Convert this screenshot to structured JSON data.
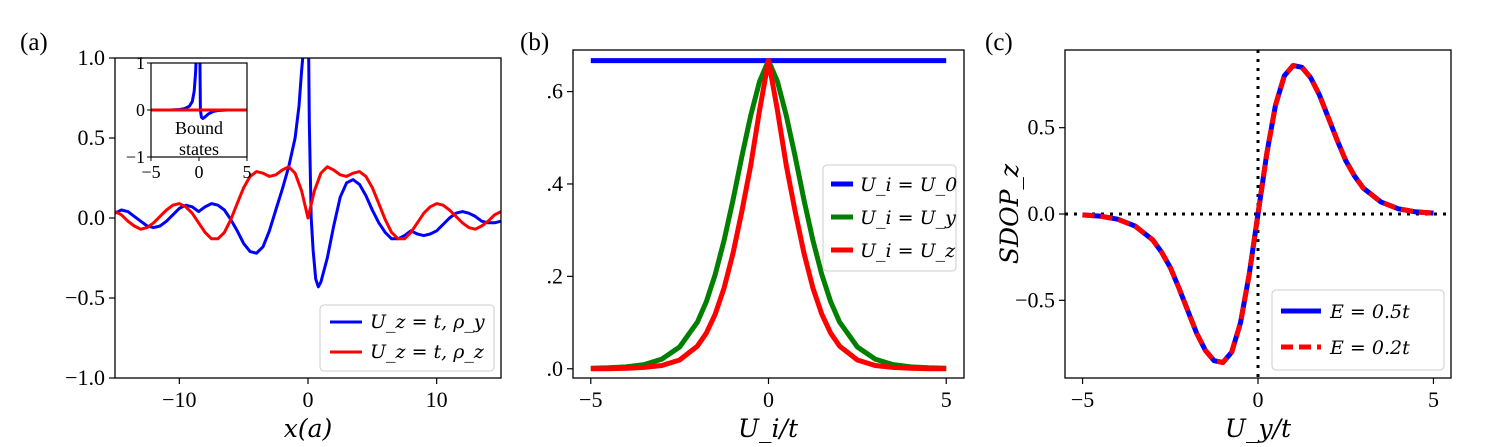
{
  "colors": {
    "blue": "#0000ff",
    "red": "#ff0000",
    "green": "#007f00",
    "black": "#000000"
  },
  "chart_data": [
    {
      "panel": "(a)",
      "type": "line",
      "xlabel": "x(a)",
      "ylabel": "",
      "xlim": [
        -15,
        15
      ],
      "ylim": [
        -1,
        1
      ],
      "xticks": [
        -10,
        0,
        10
      ],
      "xtick_labels": [
        "−10",
        "0",
        "10"
      ],
      "yticks": [
        -1,
        -0.5,
        0,
        0.5,
        1
      ],
      "ytick_labels": [
        "−1.0",
        "−0.5",
        "0.0",
        "0.5",
        "1.0"
      ],
      "legend_loc": "lower-right",
      "series": [
        {
          "name": "U_z = t, ρ_y",
          "color": "#0000ff",
          "x": [
            -15,
            -14.5,
            -14,
            -13.5,
            -13,
            -12.5,
            -12,
            -11.5,
            -11,
            -10.5,
            -10,
            -9.5,
            -9,
            -8.5,
            -8,
            -7.5,
            -7,
            -6.5,
            -6,
            -5.5,
            -5,
            -4.5,
            -4,
            -3.5,
            -3,
            -2.5,
            -2,
            -1.5,
            -1,
            -0.7,
            -0.5,
            -0.3,
            -0.15,
            0,
            0.1,
            0.25,
            0.4,
            0.6,
            0.8,
            1,
            1.5,
            2,
            2.5,
            3,
            3.5,
            4,
            4.5,
            5,
            5.5,
            6,
            6.5,
            7,
            7.5,
            8,
            8.5,
            9,
            9.5,
            10,
            10.5,
            11,
            11.5,
            12,
            12.5,
            13,
            13.5,
            14,
            14.5,
            15
          ],
          "y": [
            0.03,
            0.05,
            0.04,
            0.01,
            -0.02,
            -0.05,
            -0.06,
            -0.05,
            -0.02,
            0.02,
            0.06,
            0.08,
            0.07,
            0.04,
            0.07,
            0.09,
            0.08,
            0.05,
            -0.01,
            -0.08,
            -0.16,
            -0.21,
            -0.22,
            -0.18,
            -0.08,
            0.05,
            0.18,
            0.32,
            0.5,
            0.7,
            0.92,
            1.1,
            1.3,
            1.5,
            0.6,
            0.0,
            -0.2,
            -0.38,
            -0.43,
            -0.4,
            -0.25,
            -0.05,
            0.13,
            0.22,
            0.24,
            0.21,
            0.14,
            0.05,
            -0.03,
            -0.09,
            -0.13,
            -0.13,
            -0.11,
            -0.08,
            -0.1,
            -0.11,
            -0.1,
            -0.08,
            -0.04,
            0.0,
            0.03,
            0.04,
            0.03,
            0.01,
            -0.02,
            -0.03,
            -0.03,
            -0.02
          ]
        },
        {
          "name": "U_z = t, ρ_z",
          "color": "#ff0000",
          "x": [
            -15,
            -14.5,
            -14,
            -13.5,
            -13,
            -12.5,
            -12,
            -11.5,
            -11,
            -10.5,
            -10,
            -9.5,
            -9,
            -8.5,
            -8,
            -7.5,
            -7,
            -6.5,
            -6,
            -5.5,
            -5,
            -4.5,
            -4,
            -3.5,
            -3,
            -2.5,
            -2,
            -1.5,
            -1,
            -0.5,
            0,
            0.5,
            1,
            1.5,
            2,
            2.5,
            3,
            3.5,
            4,
            4.5,
            5,
            5.5,
            6,
            6.5,
            7,
            7.5,
            8,
            8.5,
            9,
            9.5,
            10,
            10.5,
            11,
            11.5,
            12,
            12.5,
            13,
            13.5,
            14,
            14.5,
            15
          ],
          "y": [
            0.04,
            0.02,
            -0.02,
            -0.05,
            -0.07,
            -0.06,
            -0.03,
            0.01,
            0.05,
            0.08,
            0.09,
            0.07,
            0.03,
            -0.03,
            -0.09,
            -0.13,
            -0.13,
            -0.09,
            -0.01,
            0.09,
            0.19,
            0.26,
            0.29,
            0.28,
            0.26,
            0.27,
            0.3,
            0.32,
            0.28,
            0.17,
            0.0,
            0.17,
            0.28,
            0.32,
            0.3,
            0.27,
            0.26,
            0.28,
            0.29,
            0.26,
            0.19,
            0.09,
            -0.01,
            -0.09,
            -0.13,
            -0.13,
            -0.09,
            -0.03,
            0.03,
            0.07,
            0.09,
            0.08,
            0.05,
            0.01,
            -0.03,
            -0.06,
            -0.07,
            -0.05,
            -0.02,
            0.02,
            0.04
          ]
        }
      ],
      "inset": {
        "xlim": [
          -5,
          5
        ],
        "ylim": [
          -1,
          1
        ],
        "xticks": [
          -5,
          0,
          5
        ],
        "xtick_labels": [
          "−5",
          "0",
          "5"
        ],
        "yticks": [
          -1,
          0,
          1
        ],
        "ytick_labels": [
          "−1",
          "0",
          "1"
        ],
        "note_line1": "Bound",
        "note_line2": "states",
        "series": [
          {
            "color": "#0000ff",
            "x": [
              -5,
              -3,
              -2,
              -1.5,
              -1,
              -0.7,
              -0.5,
              -0.35,
              -0.25,
              -0.18,
              0.05,
              0.15,
              0.25,
              0.4,
              0.6,
              1,
              1.5,
              2,
              3,
              5
            ],
            "y": [
              0,
              0,
              0.01,
              0.03,
              0.08,
              0.18,
              0.4,
              0.8,
              1.3,
              2.0,
              2.0,
              0.0,
              -0.15,
              -0.18,
              -0.15,
              -0.08,
              -0.03,
              -0.01,
              0,
              0
            ]
          },
          {
            "color": "#ff0000",
            "x": [
              -5,
              5
            ],
            "y": [
              0,
              0
            ]
          }
        ]
      }
    },
    {
      "panel": "(b)",
      "type": "line",
      "xlabel": "U_i/t",
      "ylabel": "",
      "xlim": [
        -5.5,
        5.5
      ],
      "ylim": [
        -0.02,
        0.69
      ],
      "xticks": [
        -5,
        0,
        5
      ],
      "xtick_labels": [
        "−5",
        "0",
        "5"
      ],
      "yticks": [
        0,
        0.2,
        0.4,
        0.6
      ],
      "ytick_labels": [
        ".0",
        ".2",
        ".4",
        ".6"
      ],
      "legend_loc": "center-right",
      "series": [
        {
          "name": "U_i = U_0",
          "color": "#0000ff",
          "x": [
            -5,
            5
          ],
          "y": [
            0.667,
            0.667
          ]
        },
        {
          "name": "U_i = U_y",
          "color": "#007f00",
          "x": [
            -5,
            -4.5,
            -4,
            -3.5,
            -3,
            -2.5,
            -2,
            -1.75,
            -1.5,
            -1.25,
            -1,
            -0.75,
            -0.5,
            -0.25,
            0,
            0.25,
            0.5,
            0.75,
            1,
            1.25,
            1.5,
            1.75,
            2,
            2.5,
            3,
            3.5,
            4,
            4.5,
            5
          ],
          "y": [
            0.001,
            0.002,
            0.004,
            0.009,
            0.021,
            0.047,
            0.101,
            0.145,
            0.204,
            0.278,
            0.365,
            0.459,
            0.548,
            0.622,
            0.667,
            0.622,
            0.548,
            0.459,
            0.365,
            0.278,
            0.204,
            0.145,
            0.101,
            0.047,
            0.021,
            0.009,
            0.004,
            0.002,
            0.001
          ]
        },
        {
          "name": "U_i = U_z",
          "color": "#ff0000",
          "x": [
            -5,
            -4.5,
            -4,
            -3.5,
            -3,
            -2.5,
            -2,
            -1.75,
            -1.5,
            -1.25,
            -1,
            -0.75,
            -0.5,
            -0.25,
            0,
            0.25,
            0.5,
            0.75,
            1,
            1.25,
            1.5,
            1.75,
            2,
            2.5,
            3,
            3.5,
            4,
            4.5,
            5
          ],
          "y": [
            0.0,
            0.0,
            0.001,
            0.003,
            0.007,
            0.019,
            0.049,
            0.077,
            0.118,
            0.175,
            0.25,
            0.34,
            0.44,
            0.56,
            0.667,
            0.56,
            0.44,
            0.34,
            0.25,
            0.175,
            0.118,
            0.077,
            0.049,
            0.019,
            0.007,
            0.003,
            0.001,
            0.0,
            0.0
          ]
        }
      ]
    },
    {
      "panel": "(c)",
      "type": "line",
      "xlabel": "U_y/t",
      "ylabel": "SDOP_z",
      "xlim": [
        -5.5,
        5.5
      ],
      "ylim": [
        -0.95,
        0.95
      ],
      "xticks": [
        -5,
        0,
        5
      ],
      "xtick_labels": [
        "−5",
        "0",
        "5"
      ],
      "yticks": [
        -0.5,
        0,
        0.5
      ],
      "ytick_labels": [
        "−0.5",
        "0.0",
        "0.5"
      ],
      "legend_loc": "lower-right",
      "series": [
        {
          "name": "E = 0.5t",
          "color": "#0000ff",
          "dash": "solid",
          "x": [
            -5,
            -4.5,
            -4,
            -3.5,
            -3,
            -2.75,
            -2.5,
            -2.25,
            -2,
            -1.75,
            -1.5,
            -1.25,
            -1,
            -0.75,
            -0.5,
            -0.25,
            0,
            0.25,
            0.5,
            0.75,
            1,
            1.25,
            1.5,
            1.75,
            2,
            2.25,
            2.5,
            2.75,
            3,
            3.5,
            4,
            4.5,
            5
          ],
          "y": [
            -0.005,
            -0.012,
            -0.03,
            -0.07,
            -0.15,
            -0.22,
            -0.31,
            -0.43,
            -0.56,
            -0.69,
            -0.79,
            -0.85,
            -0.86,
            -0.8,
            -0.63,
            -0.35,
            0.0,
            0.35,
            0.63,
            0.8,
            0.86,
            0.85,
            0.79,
            0.69,
            0.56,
            0.43,
            0.31,
            0.22,
            0.15,
            0.07,
            0.03,
            0.012,
            0.005
          ]
        },
        {
          "name": "E = 0.2t",
          "color": "#ff0000",
          "dash": "dashed",
          "x": [
            -5,
            -4.5,
            -4,
            -3.5,
            -3,
            -2.75,
            -2.5,
            -2.25,
            -2,
            -1.75,
            -1.5,
            -1.25,
            -1,
            -0.75,
            -0.5,
            -0.25,
            0,
            0.25,
            0.5,
            0.75,
            1,
            1.25,
            1.5,
            1.75,
            2,
            2.25,
            2.5,
            2.75,
            3,
            3.5,
            4,
            4.5,
            5
          ],
          "y": [
            -0.005,
            -0.012,
            -0.03,
            -0.07,
            -0.15,
            -0.22,
            -0.31,
            -0.43,
            -0.56,
            -0.69,
            -0.79,
            -0.85,
            -0.86,
            -0.8,
            -0.63,
            -0.35,
            0.0,
            0.35,
            0.63,
            0.8,
            0.86,
            0.85,
            0.79,
            0.69,
            0.56,
            0.43,
            0.31,
            0.22,
            0.15,
            0.07,
            0.03,
            0.012,
            0.005
          ]
        }
      ],
      "reference_lines": {
        "horizontal_y": 0,
        "vertical_x": 0,
        "style": "dotted"
      }
    }
  ]
}
